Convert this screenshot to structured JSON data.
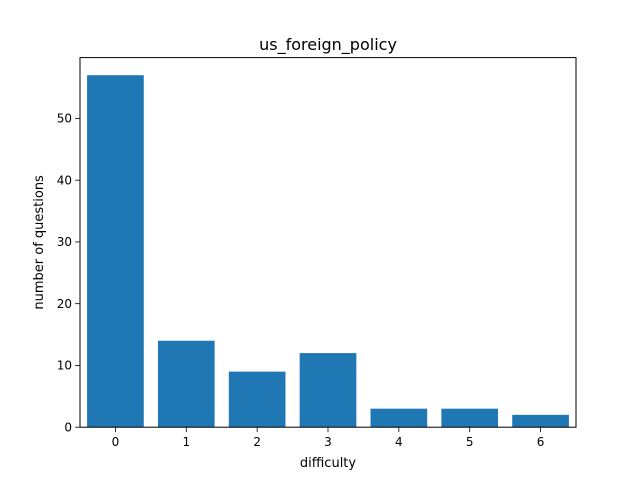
{
  "chart_data": {
    "type": "bar",
    "title": "us_foreign_policy",
    "xlabel": "difficulty",
    "ylabel": "number of questions",
    "categories": [
      "0",
      "1",
      "2",
      "3",
      "4",
      "5",
      "6"
    ],
    "values": [
      57,
      14,
      9,
      12,
      3,
      3,
      2
    ],
    "xlim": [
      -0.5,
      6.5
    ],
    "ylim": [
      0,
      59.85
    ],
    "yticks": [
      0,
      10,
      20,
      30,
      40,
      50
    ],
    "grid": false,
    "legend": "none",
    "bar_color": "#1f77b4"
  }
}
